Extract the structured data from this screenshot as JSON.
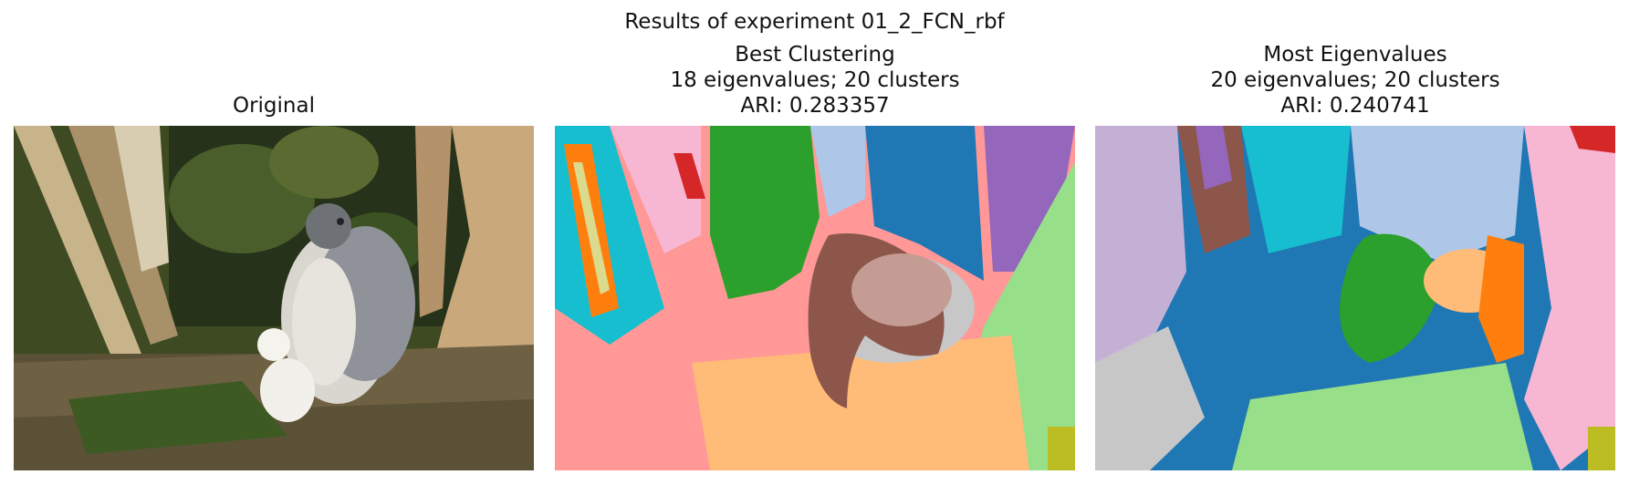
{
  "suptitle": "Results of experiment 01_2_FCN_rbf",
  "panels": [
    {
      "title_lines": [
        "Original"
      ],
      "image_subject": "hawk-with-chick-on-nest-photo"
    },
    {
      "title_lines": [
        "Best Clustering",
        "18 eigenvalues; 20 clusters",
        "ARI: 0.283357"
      ],
      "image_subject": "segmentation-map"
    },
    {
      "title_lines": [
        "Most Eigenvalues",
        "20 eigenvalues; 20 clusters",
        "ARI: 0.240741"
      ],
      "image_subject": "segmentation-map"
    }
  ]
}
